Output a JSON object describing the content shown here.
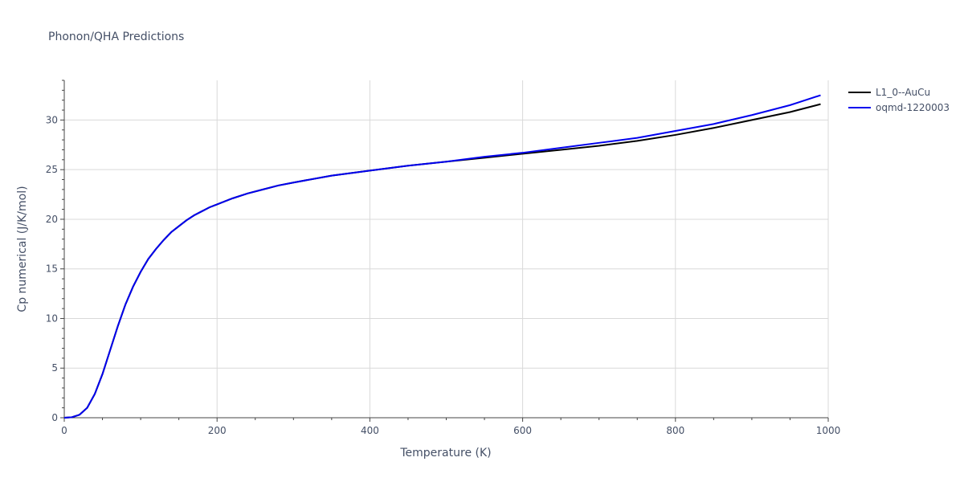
{
  "chart_data": {
    "type": "line",
    "title": "Phonon/QHA Predictions",
    "xlabel": "Temperature (K)",
    "ylabel": "Cp numerical (J/K/mol)",
    "xlim": [
      0,
      1000
    ],
    "ylim": [
      0,
      34
    ],
    "xticks": [
      0,
      200,
      400,
      600,
      800,
      1000
    ],
    "yticks": [
      0,
      5,
      10,
      15,
      20,
      25,
      30
    ],
    "grid": true,
    "legend_position": "top-right",
    "series": [
      {
        "name": "L1_0--AuCu",
        "color": "#000000",
        "x": [
          0,
          10,
          20,
          30,
          40,
          50,
          60,
          70,
          80,
          90,
          100,
          110,
          120,
          130,
          140,
          150,
          160,
          170,
          180,
          190,
          200,
          220,
          240,
          260,
          280,
          300,
          350,
          400,
          450,
          500,
          550,
          600,
          650,
          700,
          750,
          800,
          850,
          900,
          950,
          990
        ],
        "y": [
          0,
          0.05,
          0.3,
          1.0,
          2.4,
          4.4,
          6.8,
          9.2,
          11.4,
          13.2,
          14.7,
          16.0,
          17.0,
          17.9,
          18.7,
          19.3,
          19.9,
          20.4,
          20.8,
          21.2,
          21.5,
          22.1,
          22.6,
          23.0,
          23.4,
          23.7,
          24.4,
          24.9,
          25.4,
          25.8,
          26.2,
          26.6,
          27.0,
          27.4,
          27.9,
          28.5,
          29.2,
          30.0,
          30.8,
          31.6
        ]
      },
      {
        "name": "oqmd-1220003",
        "color": "#0000ee",
        "x": [
          0,
          10,
          20,
          30,
          40,
          50,
          60,
          70,
          80,
          90,
          100,
          110,
          120,
          130,
          140,
          150,
          160,
          170,
          180,
          190,
          200,
          220,
          240,
          260,
          280,
          300,
          350,
          400,
          450,
          500,
          550,
          600,
          650,
          700,
          750,
          800,
          850,
          900,
          950,
          990
        ],
        "y": [
          0,
          0.05,
          0.3,
          1.0,
          2.4,
          4.4,
          6.8,
          9.2,
          11.4,
          13.2,
          14.7,
          16.0,
          17.0,
          17.9,
          18.7,
          19.3,
          19.9,
          20.4,
          20.8,
          21.2,
          21.5,
          22.1,
          22.6,
          23.0,
          23.4,
          23.7,
          24.4,
          24.9,
          25.4,
          25.8,
          26.3,
          26.7,
          27.2,
          27.7,
          28.2,
          28.9,
          29.6,
          30.5,
          31.5,
          32.5
        ]
      }
    ]
  }
}
